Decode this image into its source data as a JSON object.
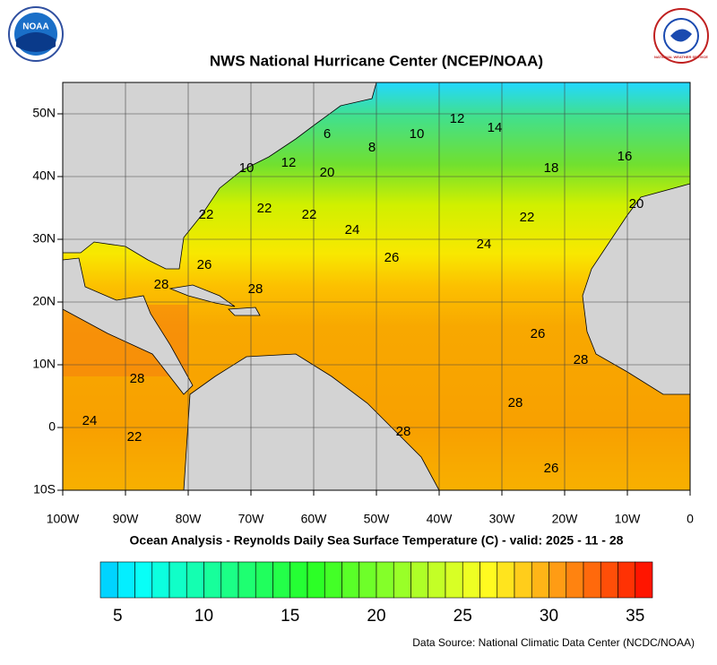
{
  "header": {
    "title": "NWS National Hurricane Center (NCEP/NOAA)",
    "noaa_logo": "NOAA",
    "nws_logo": "NATIONAL WEATHER SERVICE"
  },
  "map": {
    "xlim": [
      -100,
      0
    ],
    "ylim": [
      -10,
      55
    ],
    "xticks": [
      {
        "value": -100,
        "label": "100W"
      },
      {
        "value": -90,
        "label": "90W"
      },
      {
        "value": -80,
        "label": "80W"
      },
      {
        "value": -70,
        "label": "70W"
      },
      {
        "value": -60,
        "label": "60W"
      },
      {
        "value": -50,
        "label": "50W"
      },
      {
        "value": -40,
        "label": "40W"
      },
      {
        "value": -30,
        "label": "30W"
      },
      {
        "value": -20,
        "label": "20W"
      },
      {
        "value": -10,
        "label": "10W"
      },
      0
    ],
    "yticks": [
      {
        "value": -10,
        "label": "10S"
      },
      0,
      {
        "value": 10,
        "label": "10N"
      },
      {
        "value": 20,
        "label": "20N"
      },
      {
        "value": 30,
        "label": "30N"
      },
      {
        "value": 40,
        "label": "40N"
      },
      {
        "value": 50,
        "label": "50N"
      }
    ],
    "grid": true,
    "contour_labels": [
      6,
      8,
      10,
      12,
      14,
      16,
      18,
      20,
      12,
      10,
      22,
      22,
      22,
      24,
      22,
      20,
      24,
      26,
      26,
      28,
      28,
      26,
      28,
      28,
      28,
      28,
      24,
      22,
      26
    ]
  },
  "caption": "Ocean Analysis - Reynolds Daily Sea Surface Temperature (C) - valid: 2025 - 11 - 28",
  "colorbar": {
    "range": [
      4,
      36
    ],
    "ticks": [
      5,
      10,
      15,
      20,
      25,
      30,
      35
    ]
  },
  "source": "Data Source: National Climatic Data Center (NCDC/NOAA)"
}
